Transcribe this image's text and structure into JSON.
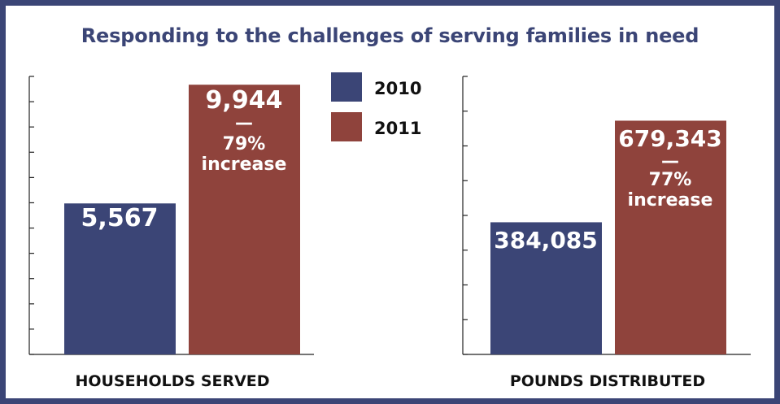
{
  "title": "Responding to the challenges of serving families in need",
  "colors": {
    "y2010": "#3b4576",
    "y2011": "#8f433c",
    "frame": "#3b4576"
  },
  "legend": [
    {
      "label": "2010",
      "color": "#3b4576"
    },
    {
      "label": "2011",
      "color": "#8f433c"
    }
  ],
  "chart_data": [
    {
      "type": "bar",
      "title": "",
      "xlabel": "HOUSEHOLDS SERVED",
      "ylabel": "",
      "categories": [
        "2010",
        "2011"
      ],
      "values": [
        5567,
        9944
      ],
      "value_labels": [
        "5,567",
        "9,944"
      ],
      "annotation": {
        "dash": "—",
        "percent": "79%",
        "word": "increase"
      },
      "ylim": [
        0,
        10250
      ],
      "ticks": 12,
      "legend": "between charts, top"
    },
    {
      "type": "bar",
      "title": "",
      "xlabel": "POUNDS DISTRIBUTED",
      "ylabel": "",
      "categories": [
        "2010",
        "2011"
      ],
      "values": [
        384085,
        679343
      ],
      "value_labels": [
        "384,085",
        "679,343"
      ],
      "annotation": {
        "dash": "—",
        "percent": "77%",
        "word": "increase"
      },
      "ylim": [
        0,
        808000
      ],
      "ticks": 9
    }
  ]
}
